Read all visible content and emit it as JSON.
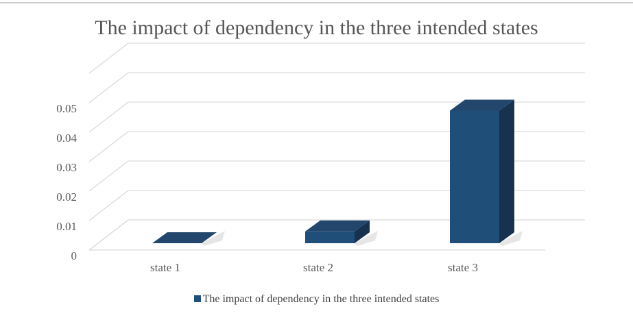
{
  "colors": {
    "bar_front": "#1f4e79",
    "bar_top": "#23476c",
    "bar_side": "#16324f",
    "gridline": "#d9d9d9",
    "text": "#595959",
    "title_text": "#555555",
    "shadow": "#e6e6e6"
  },
  "chart_data": {
    "type": "bar",
    "style": "3d-column",
    "title": "The impact of dependency in the three intended states",
    "categories": [
      "state 1",
      "state 2",
      "state 3"
    ],
    "series": [
      {
        "name": "The impact of dependency in the three intended states",
        "values": [
          0.0,
          0.004,
          0.045
        ]
      }
    ],
    "yticks": [
      "0",
      "0.01",
      "0.02",
      "0.03",
      "0.04",
      "0.05"
    ],
    "ylim": [
      0,
      0.05
    ],
    "grid": true,
    "legend_position": "bottom"
  }
}
